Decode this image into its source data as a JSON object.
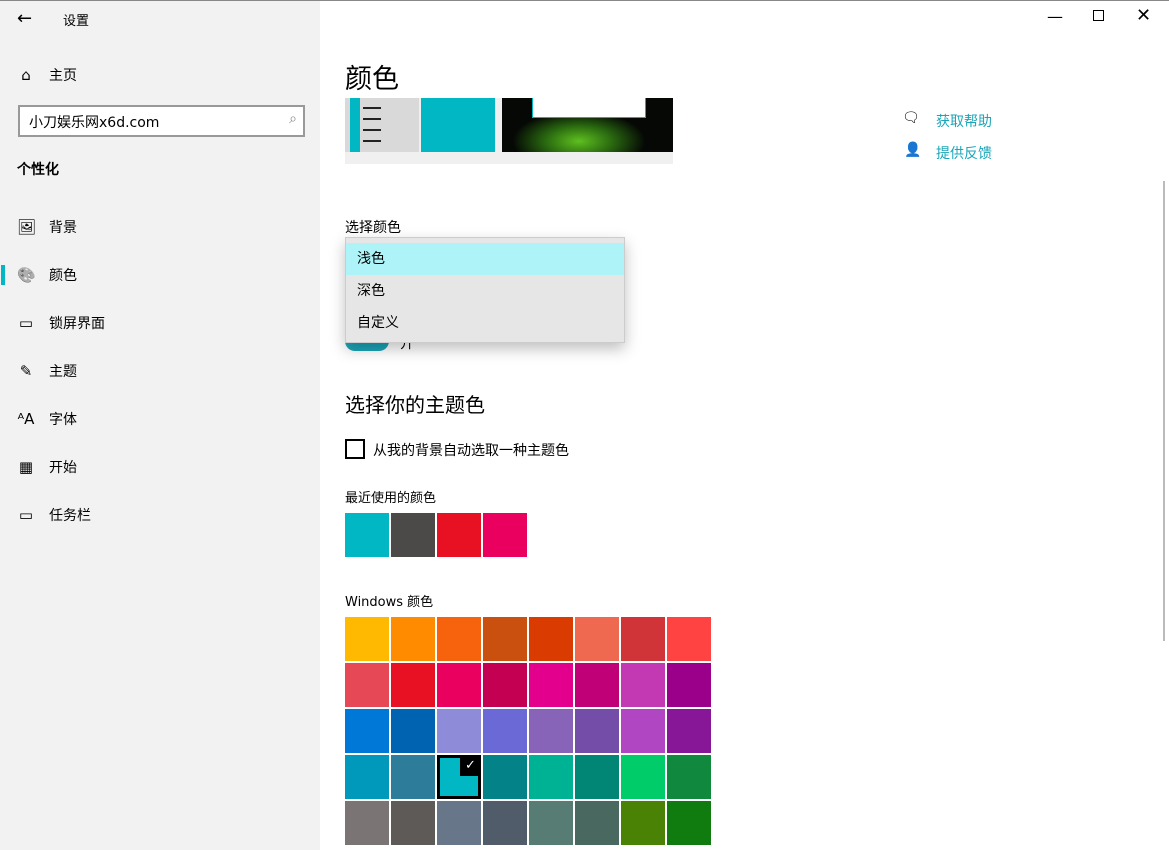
{
  "window": {
    "title": "设置",
    "back_icon": "arrow-left-icon",
    "minimize_icon": "minimize-icon",
    "maximize_icon": "maximize-icon",
    "close_icon": "close-icon"
  },
  "sidebar": {
    "home": {
      "label": "主页",
      "icon": "home-icon"
    },
    "search": {
      "value": "小刀娱乐网x6d.com",
      "icon": "search-icon"
    },
    "section": "个性化",
    "items": [
      {
        "label": "背景",
        "icon": "image-icon"
      },
      {
        "label": "颜色",
        "icon": "palette-icon",
        "selected": true
      },
      {
        "label": "锁屏界面",
        "icon": "lock-screen-icon"
      },
      {
        "label": "主题",
        "icon": "theme-icon"
      },
      {
        "label": "字体",
        "icon": "font-icon"
      },
      {
        "label": "开始",
        "icon": "start-icon"
      },
      {
        "label": "任务栏",
        "icon": "taskbar-icon"
      }
    ],
    "accent": "#00B7C3"
  },
  "main": {
    "title": "颜色",
    "choose_color_label": "选择颜色",
    "dropdown_options": [
      "浅色",
      "深色",
      "自定义"
    ],
    "dropdown_selected": "浅色",
    "toggle_label": "开",
    "accent_title": "选择你的主题色",
    "auto_pick_label": "从我的背景自动选取一种主题色",
    "auto_pick_checked": false,
    "recent_label": "最近使用的颜色",
    "recent_colors": [
      "#00B7C3",
      "#4C4A48",
      "#E81123",
      "#EA005E"
    ],
    "windows_colors_label": "Windows 颜色",
    "windows_colors": [
      [
        "#FFB900",
        "#FF8C00",
        "#F7630C",
        "#CA5010",
        "#DA3B01",
        "#EF6950",
        "#D13438",
        "#FF4343"
      ],
      [
        "#E74856",
        "#E81123",
        "#EA005E",
        "#C30052",
        "#E3008C",
        "#BF0077",
        "#C239B3",
        "#9A0089"
      ],
      [
        "#0078D7",
        "#0063B1",
        "#8E8CD8",
        "#6B69D6",
        "#8764B8",
        "#744DA9",
        "#B146C2",
        "#881798"
      ],
      [
        "#0099BC",
        "#2D7D9A",
        "#00B7C3",
        "#038387",
        "#00B294",
        "#018574",
        "#00CC6A",
        "#10893E"
      ],
      [
        "#7A7574",
        "#5D5A58",
        "#68768A",
        "#515C6B",
        "#567C73",
        "#486860",
        "#498205",
        "#107C10"
      ]
    ],
    "selected_color": "#00B7C3"
  },
  "help": {
    "get_help": "获取帮助",
    "feedback": "提供反馈",
    "get_help_icon": "help-chat-icon",
    "feedback_icon": "feedback-icon"
  }
}
